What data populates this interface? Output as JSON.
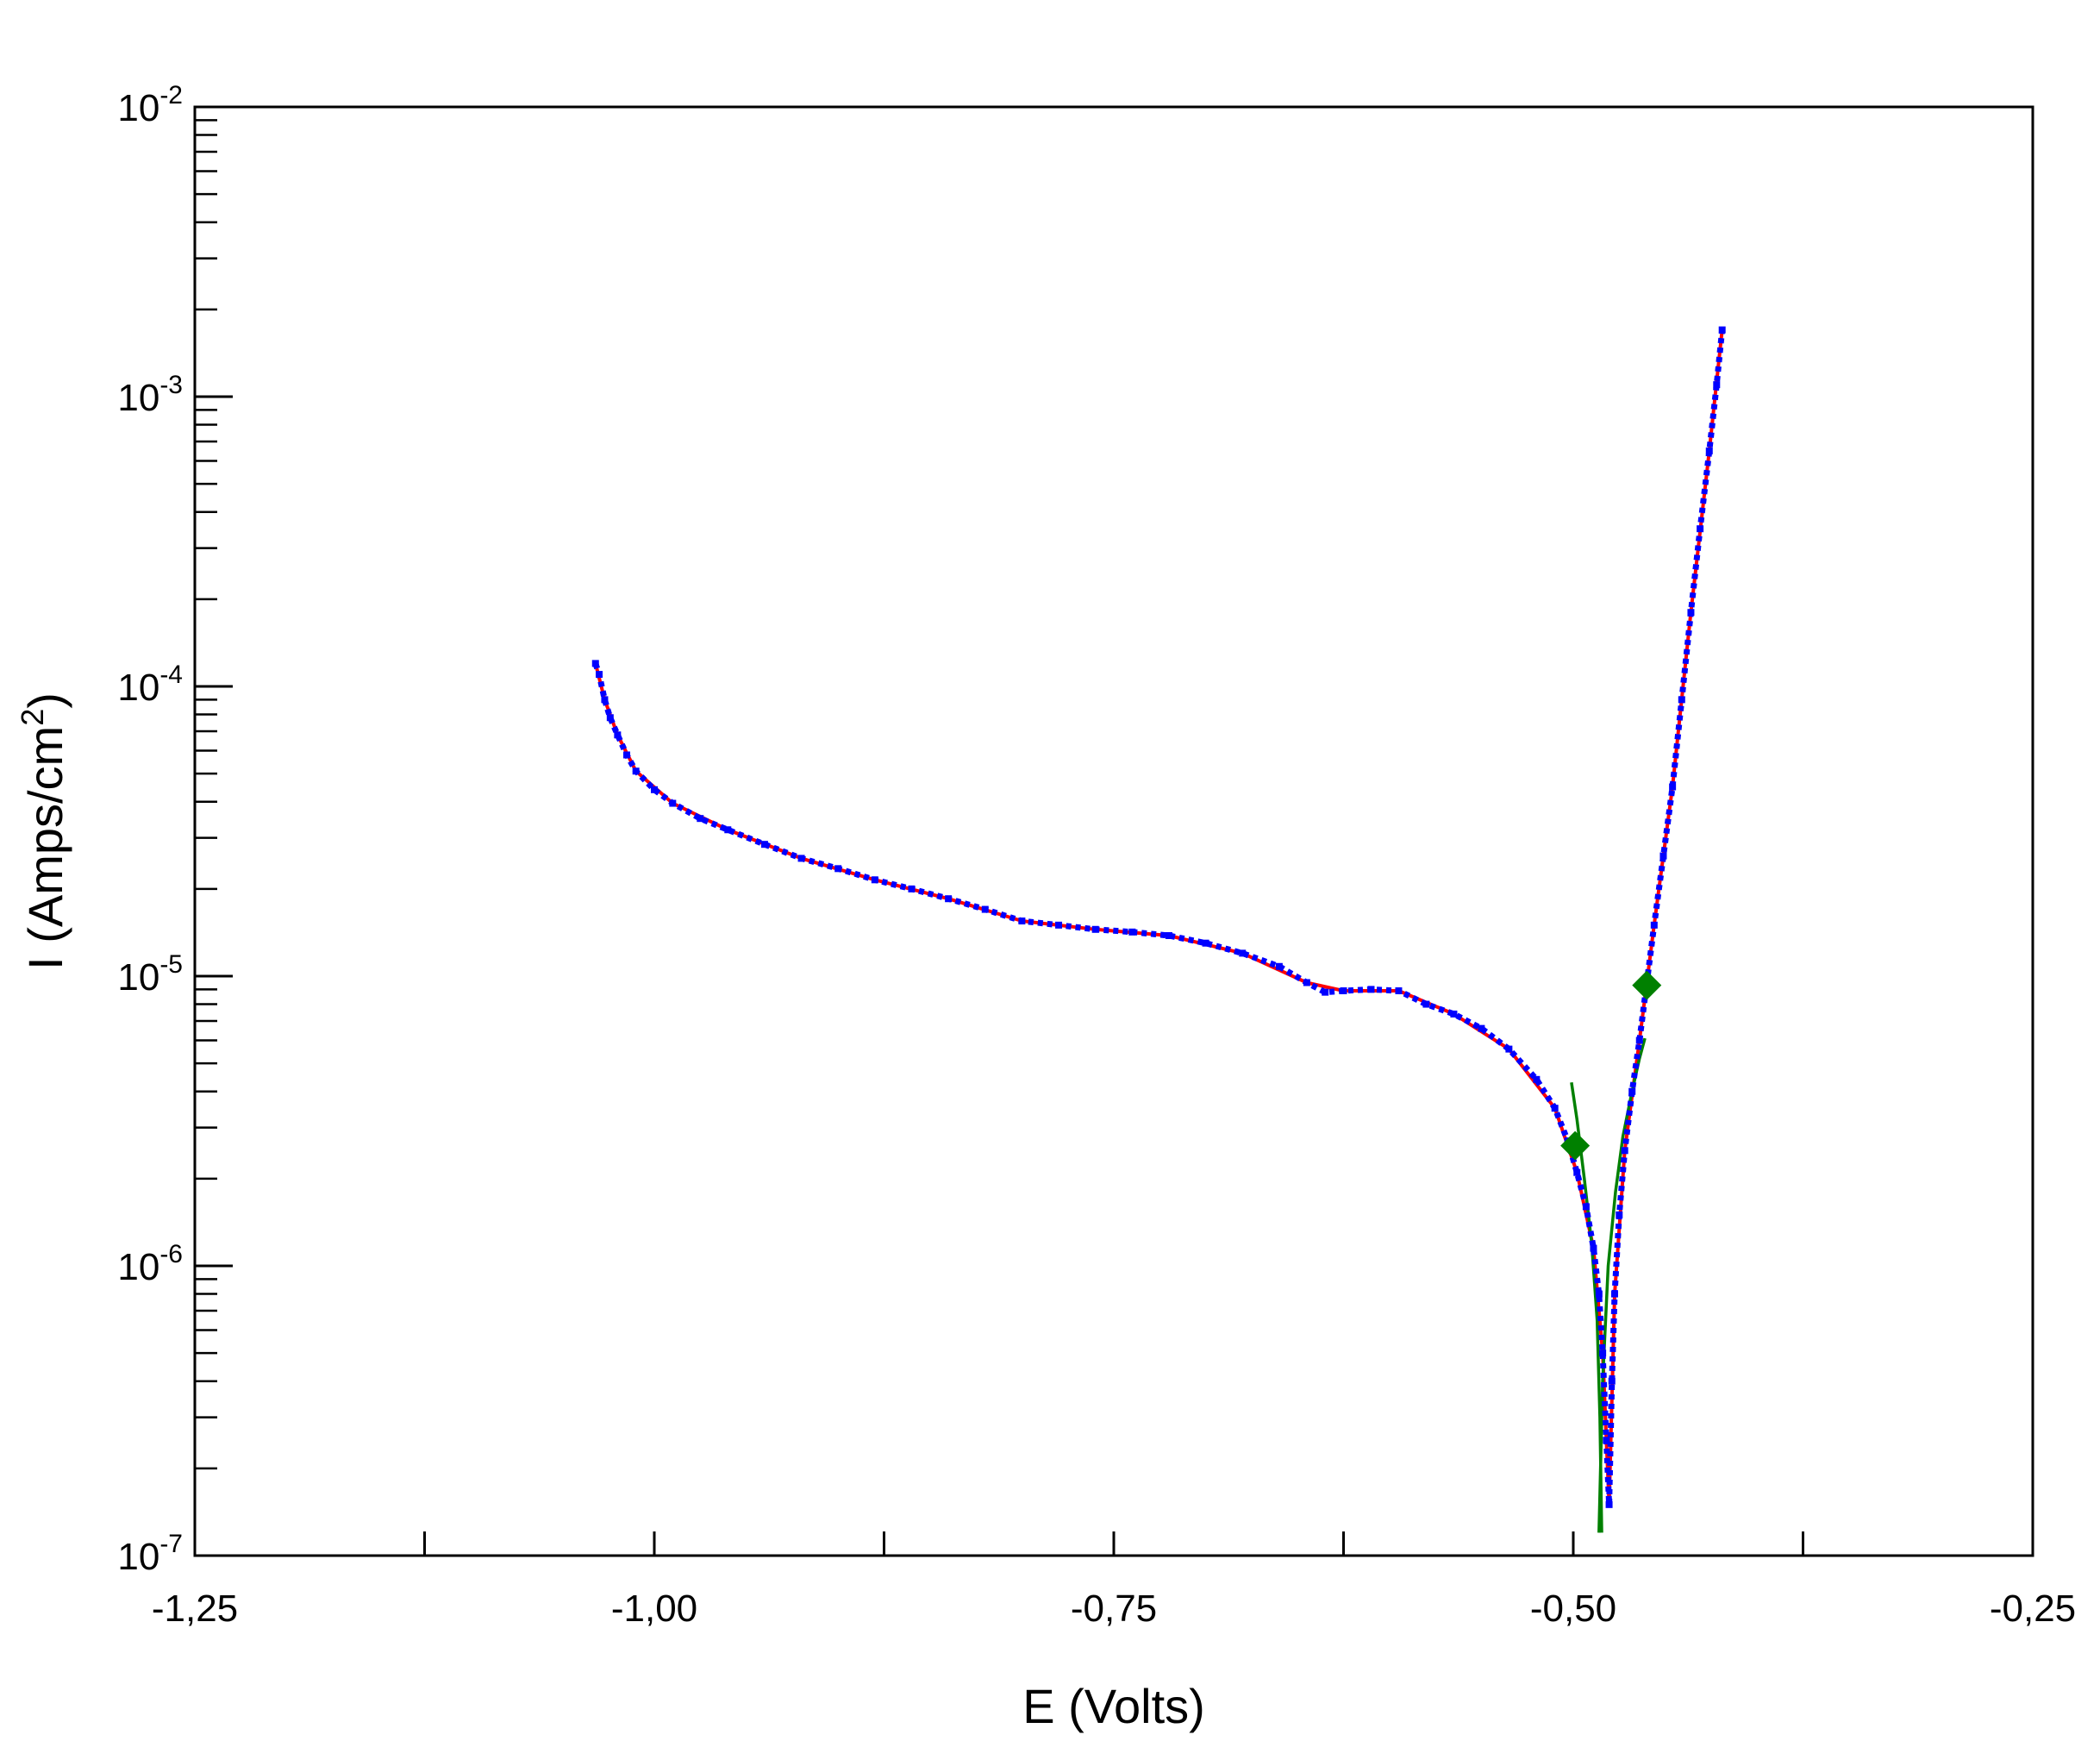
{
  "chart_data": {
    "type": "line",
    "title": "",
    "xlabel": "E (Volts)",
    "ylabel_main": "I (Amps/cm",
    "ylabel_sup": "2",
    "ylabel_close": ")",
    "xscale": "linear",
    "yscale": "log",
    "xlim": [
      -1.25,
      -0.25
    ],
    "ylim": [
      1e-07,
      0.01
    ],
    "grid": false,
    "legend": "none",
    "x_ticks": [
      {
        "value": -1.25,
        "label": "-1,25"
      },
      {
        "value": -1.0,
        "label": "-1,00"
      },
      {
        "value": -0.75,
        "label": "-0,75"
      },
      {
        "value": -0.5,
        "label": "-0,50"
      },
      {
        "value": -0.25,
        "label": "-0,25"
      }
    ],
    "x_minor_ticks": [
      -1.125,
      -0.875,
      -0.625,
      -0.375
    ],
    "y_ticks": [
      {
        "value": 1e-07,
        "base": "10",
        "exp": "-7"
      },
      {
        "value": 1e-06,
        "base": "10",
        "exp": "-6"
      },
      {
        "value": 1e-05,
        "base": "10",
        "exp": "-5"
      },
      {
        "value": 0.0001,
        "base": "10",
        "exp": "-4"
      },
      {
        "value": 0.001,
        "base": "10",
        "exp": "-3"
      },
      {
        "value": 0.01,
        "base": "10",
        "exp": "-2"
      }
    ],
    "colors": {
      "data": "#0000ff",
      "fit": "#ff0000",
      "tafel": "#008000",
      "axis": "#000000"
    },
    "series": [
      {
        "role": "measured-data",
        "style": "dotted-markers",
        "color": "#0000ff",
        "points": [
          [
            -1.032,
            0.00012
          ],
          [
            -1.03,
            0.00011
          ],
          [
            -1.027,
            9e-05
          ],
          [
            -1.024,
            7.8e-05
          ],
          [
            -1.02,
            6.8e-05
          ],
          [
            -1.015,
            5.8e-05
          ],
          [
            -1.01,
            5.1e-05
          ],
          [
            -1.0,
            4.4e-05
          ],
          [
            -0.99,
            3.95e-05
          ],
          [
            -0.975,
            3.5e-05
          ],
          [
            -0.96,
            3.2e-05
          ],
          [
            -0.94,
            2.85e-05
          ],
          [
            -0.92,
            2.55e-05
          ],
          [
            -0.9,
            2.35e-05
          ],
          [
            -0.88,
            2.15e-05
          ],
          [
            -0.86,
            2e-05
          ],
          [
            -0.84,
            1.85e-05
          ],
          [
            -0.82,
            1.7e-05
          ],
          [
            -0.8,
            1.55e-05
          ],
          [
            -0.78,
            1.5e-05
          ],
          [
            -0.76,
            1.45e-05
          ],
          [
            -0.74,
            1.42e-05
          ],
          [
            -0.72,
            1.38e-05
          ],
          [
            -0.7,
            1.3e-05
          ],
          [
            -0.68,
            1.2e-05
          ],
          [
            -0.66,
            1.08e-05
          ],
          [
            -0.645,
            9.5e-06
          ],
          [
            -0.635,
            8.8e-06
          ],
          [
            -0.625,
            8.9e-06
          ],
          [
            -0.61,
            9e-06
          ],
          [
            -0.595,
            8.9e-06
          ],
          [
            -0.58,
            8e-06
          ],
          [
            -0.565,
            7.4e-06
          ],
          [
            -0.55,
            6.6e-06
          ],
          [
            -0.535,
            5.6e-06
          ],
          [
            -0.52,
            4.4e-06
          ],
          [
            -0.51,
            3.5e-06
          ],
          [
            -0.503,
            2.7e-06
          ],
          [
            -0.498,
            2.1e-06
          ],
          [
            -0.493,
            1.6e-06
          ],
          [
            -0.489,
            1.15e-06
          ],
          [
            -0.486,
            8e-07
          ],
          [
            -0.484,
            5e-07
          ],
          [
            -0.482,
            2.5e-07
          ],
          [
            -0.4805,
            1.5e-07
          ],
          [
            -0.479,
            4e-07
          ],
          [
            -0.4775,
            8e-07
          ],
          [
            -0.475,
            1.5e-06
          ],
          [
            -0.472,
            2.5e-06
          ],
          [
            -0.468,
            4e-06
          ],
          [
            -0.464,
            6e-06
          ],
          [
            -0.46,
            9.5e-06
          ],
          [
            -0.456,
            1.5e-05
          ],
          [
            -0.451,
            2.6e-05
          ],
          [
            -0.446,
            4.5e-05
          ],
          [
            -0.441,
            9e-05
          ],
          [
            -0.436,
            0.00018
          ],
          [
            -0.431,
            0.00035
          ],
          [
            -0.426,
            0.00065
          ],
          [
            -0.422,
            0.0011
          ],
          [
            -0.419,
            0.0017
          ]
        ]
      },
      {
        "role": "fit-curve",
        "style": "solid-line",
        "color": "#ff0000",
        "points": [
          [
            -1.032,
            0.00012
          ],
          [
            -1.027,
            9e-05
          ],
          [
            -1.02,
            6.8e-05
          ],
          [
            -1.01,
            5.1e-05
          ],
          [
            -0.99,
            3.95e-05
          ],
          [
            -0.96,
            3.2e-05
          ],
          [
            -0.92,
            2.55e-05
          ],
          [
            -0.88,
            2.15e-05
          ],
          [
            -0.84,
            1.85e-05
          ],
          [
            -0.8,
            1.55e-05
          ],
          [
            -0.76,
            1.45e-05
          ],
          [
            -0.72,
            1.38e-05
          ],
          [
            -0.68,
            1.2e-05
          ],
          [
            -0.645,
            9.5e-06
          ],
          [
            -0.625,
            8.9e-06
          ],
          [
            -0.595,
            8.9e-06
          ],
          [
            -0.565,
            7.4e-06
          ],
          [
            -0.535,
            5.6e-06
          ],
          [
            -0.51,
            3.5e-06
          ],
          [
            -0.498,
            2.1e-06
          ],
          [
            -0.489,
            1.15e-06
          ],
          [
            -0.484,
            5e-07
          ],
          [
            -0.4805,
            1.5e-07
          ],
          [
            -0.4775,
            8e-07
          ],
          [
            -0.472,
            2.5e-06
          ],
          [
            -0.464,
            6e-06
          ],
          [
            -0.456,
            1.5e-05
          ],
          [
            -0.446,
            4.5e-05
          ],
          [
            -0.436,
            0.00018
          ],
          [
            -0.426,
            0.00065
          ],
          [
            -0.419,
            0.0017
          ]
        ]
      },
      {
        "role": "tafel-cathodic",
        "style": "solid-line",
        "color": "#008000",
        "points": [
          [
            -0.501,
            4.3e-06
          ],
          [
            -0.498,
            3.2e-06
          ],
          [
            -0.494,
            2e-06
          ],
          [
            -0.49,
            1.2e-06
          ],
          [
            -0.487,
            6.5e-07
          ],
          [
            -0.4855,
            3e-07
          ],
          [
            -0.4845,
            1.2e-07
          ]
        ]
      },
      {
        "role": "tafel-anodic",
        "style": "solid-line",
        "color": "#008000",
        "points": [
          [
            -0.486,
            1.2e-07
          ],
          [
            -0.484,
            4e-07
          ],
          [
            -0.481,
            1e-06
          ],
          [
            -0.477,
            1.8e-06
          ],
          [
            -0.473,
            2.8e-06
          ],
          [
            -0.468,
            4e-06
          ],
          [
            -0.464,
            5.2e-06
          ],
          [
            -0.461,
            6.1e-06
          ]
        ]
      }
    ],
    "markers": [
      {
        "x": -0.499,
        "y": 2.6e-06,
        "shape": "diamond",
        "color": "#008000"
      },
      {
        "x": -0.46,
        "y": 9.3e-06,
        "shape": "diamond",
        "color": "#008000"
      }
    ]
  }
}
